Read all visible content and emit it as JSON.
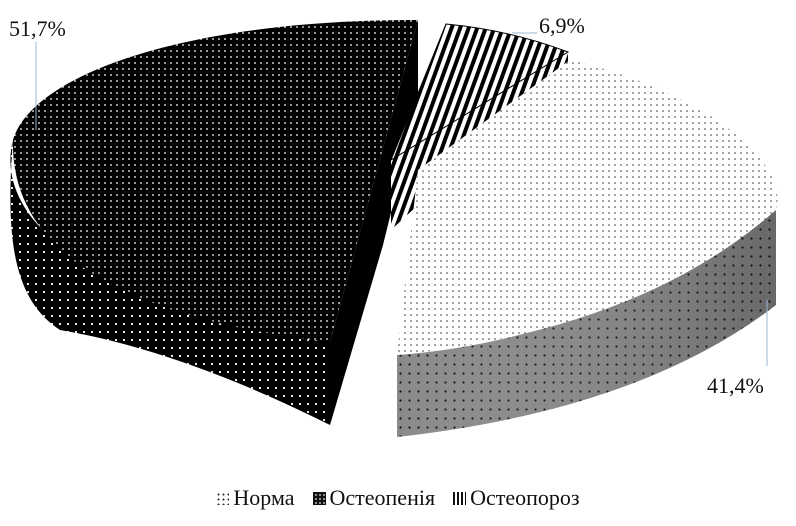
{
  "chart_data": {
    "type": "pie",
    "categories": [
      "Норма",
      "Остеопенія",
      "Остеопороз"
    ],
    "values": [
      41.4,
      51.7,
      6.9
    ],
    "data_labels": [
      "41,4%",
      "51,7%",
      "6,9%"
    ],
    "legend_position": "bottom",
    "style": "3D exploded pie with pattern fills",
    "colors": {
      "Норма": "#ffffff",
      "Остеопенія": "#000000",
      "Остеопороз": "#000000"
    }
  },
  "legend": {
    "items": [
      {
        "label": "Норма",
        "icon": "dotted-swatch-icon"
      },
      {
        "label": "Остеопенія",
        "icon": "black-swatch-icon"
      },
      {
        "label": "Остеопороз",
        "icon": "striped-swatch-icon"
      }
    ]
  }
}
